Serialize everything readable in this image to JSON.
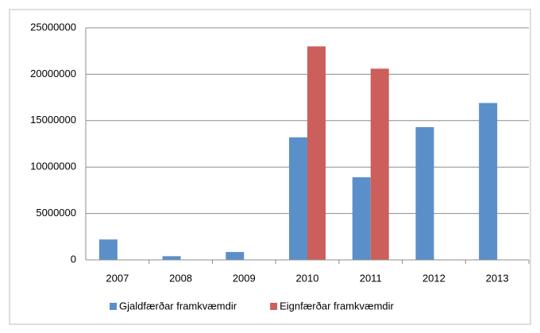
{
  "chart_data": {
    "type": "bar",
    "categories": [
      "2007",
      "2008",
      "2009",
      "2010",
      "2011",
      "2012",
      "2013"
    ],
    "series": [
      {
        "name": "Gjaldfærðar framkvæmdir",
        "color": "#5b8fc9",
        "values": [
          2200000,
          400000,
          850000,
          13200000,
          8900000,
          14300000,
          16900000
        ]
      },
      {
        "name": "Eignfærðar framkvæmdir",
        "color": "#cc5f5b",
        "values": [
          null,
          null,
          null,
          23000000,
          20600000,
          null,
          null
        ]
      }
    ],
    "ylim": [
      0,
      25000000
    ],
    "yticks": [
      0,
      5000000,
      10000000,
      15000000,
      20000000,
      25000000
    ],
    "grid": true,
    "legend": "bottom"
  }
}
